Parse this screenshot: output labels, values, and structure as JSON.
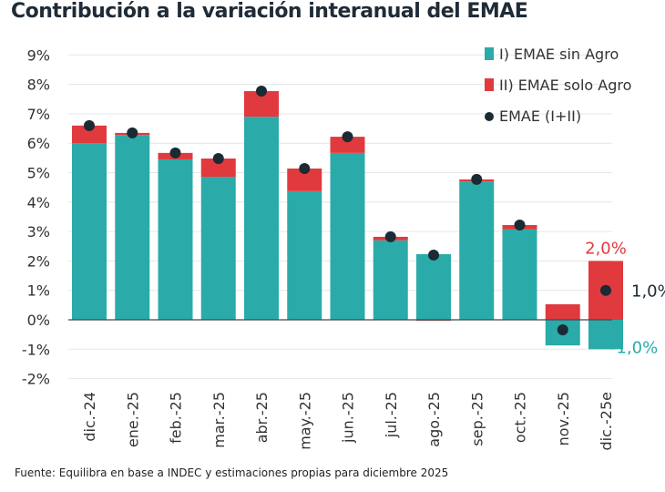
{
  "title": "Contribución a la variación interanual del EMAE",
  "source": "Fuente: Equilibra en base a INDEC y estimaciones propias para diciembre 2025",
  "colors": {
    "sin_agro": "#2aaba9",
    "solo_agro": "#e03a3e",
    "total": "#1b2a33"
  },
  "chart_data": {
    "type": "bar",
    "stacked": true,
    "title": "Contribución a la variación interanual del EMAE",
    "categories": [
      "dic.-24",
      "ene.-25",
      "feb.-25",
      "mar.-25",
      "abr.-25",
      "may.-25",
      "jun.-25",
      "jul.-25",
      "ago.-25",
      "sep.-25",
      "oct.-25",
      "nov.-25",
      "dic.-25e"
    ],
    "series": [
      {
        "name": "I) EMAE sin Agro",
        "kind": "bar",
        "color": "#2aaba9",
        "values": [
          6.0,
          6.28,
          5.45,
          4.86,
          6.9,
          4.37,
          5.67,
          2.7,
          2.23,
          4.7,
          3.07,
          -0.87,
          -1.0
        ]
      },
      {
        "name": "II) EMAE solo Agro",
        "kind": "bar",
        "color": "#e03a3e",
        "values": [
          0.6,
          0.07,
          0.22,
          0.62,
          0.87,
          0.77,
          0.55,
          0.12,
          -0.03,
          0.07,
          0.15,
          0.53,
          2.0
        ]
      },
      {
        "name": "EMAE (I+II)",
        "kind": "point",
        "color": "#1b2a33",
        "values": [
          6.6,
          6.35,
          5.67,
          5.48,
          7.77,
          5.14,
          6.22,
          2.82,
          2.2,
          4.77,
          3.22,
          -0.34,
          1.0
        ]
      }
    ],
    "ylim": [
      -2,
      9
    ],
    "yticks": [
      "-2%",
      "-1%",
      "0%",
      "1%",
      "2%",
      "3%",
      "4%",
      "5%",
      "6%",
      "7%",
      "8%",
      "9%"
    ],
    "grid": true,
    "legend": "top-right",
    "annotations": [
      {
        "text": "2,0%",
        "color": "#e03a3e"
      },
      {
        "text": "1,0%",
        "color": "#1b2a33"
      },
      {
        "text": "-1,0%",
        "color": "#2aaba9"
      }
    ]
  }
}
